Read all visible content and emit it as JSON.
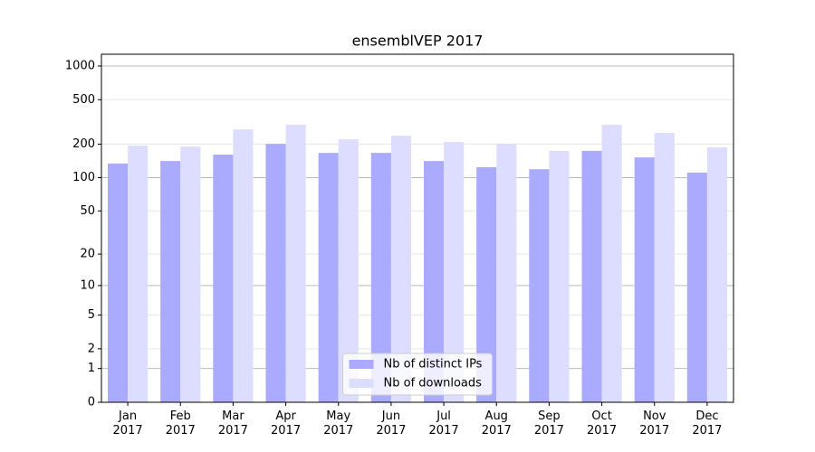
{
  "chart_data": {
    "type": "bar",
    "title": "ensemblVEP 2017",
    "categories": [
      "Jan\n2017",
      "Feb\n2017",
      "Mar\n2017",
      "Apr\n2017",
      "May\n2017",
      "Jun\n2017",
      "Jul\n2017",
      "Aug\n2017",
      "Sep\n2017",
      "Oct\n2017",
      "Nov\n2017",
      "Dec\n2017"
    ],
    "series": [
      {
        "name": "Nb of distinct IPs",
        "color": "#aaaaff",
        "values": [
          134,
          141,
          161,
          201,
          167,
          167,
          141,
          124,
          119,
          174,
          152,
          111
        ]
      },
      {
        "name": "Nb of downloads",
        "color": "#ddddff",
        "values": [
          194,
          190,
          271,
          298,
          221,
          238,
          209,
          201,
          174,
          298,
          252,
          187
        ]
      }
    ],
    "yscale": "log1p",
    "ylim": [
      0,
      1273
    ],
    "yticks": [
      0,
      1,
      2,
      5,
      10,
      20,
      50,
      100,
      200,
      500,
      1000
    ],
    "grid": true,
    "legend": "lower center"
  }
}
